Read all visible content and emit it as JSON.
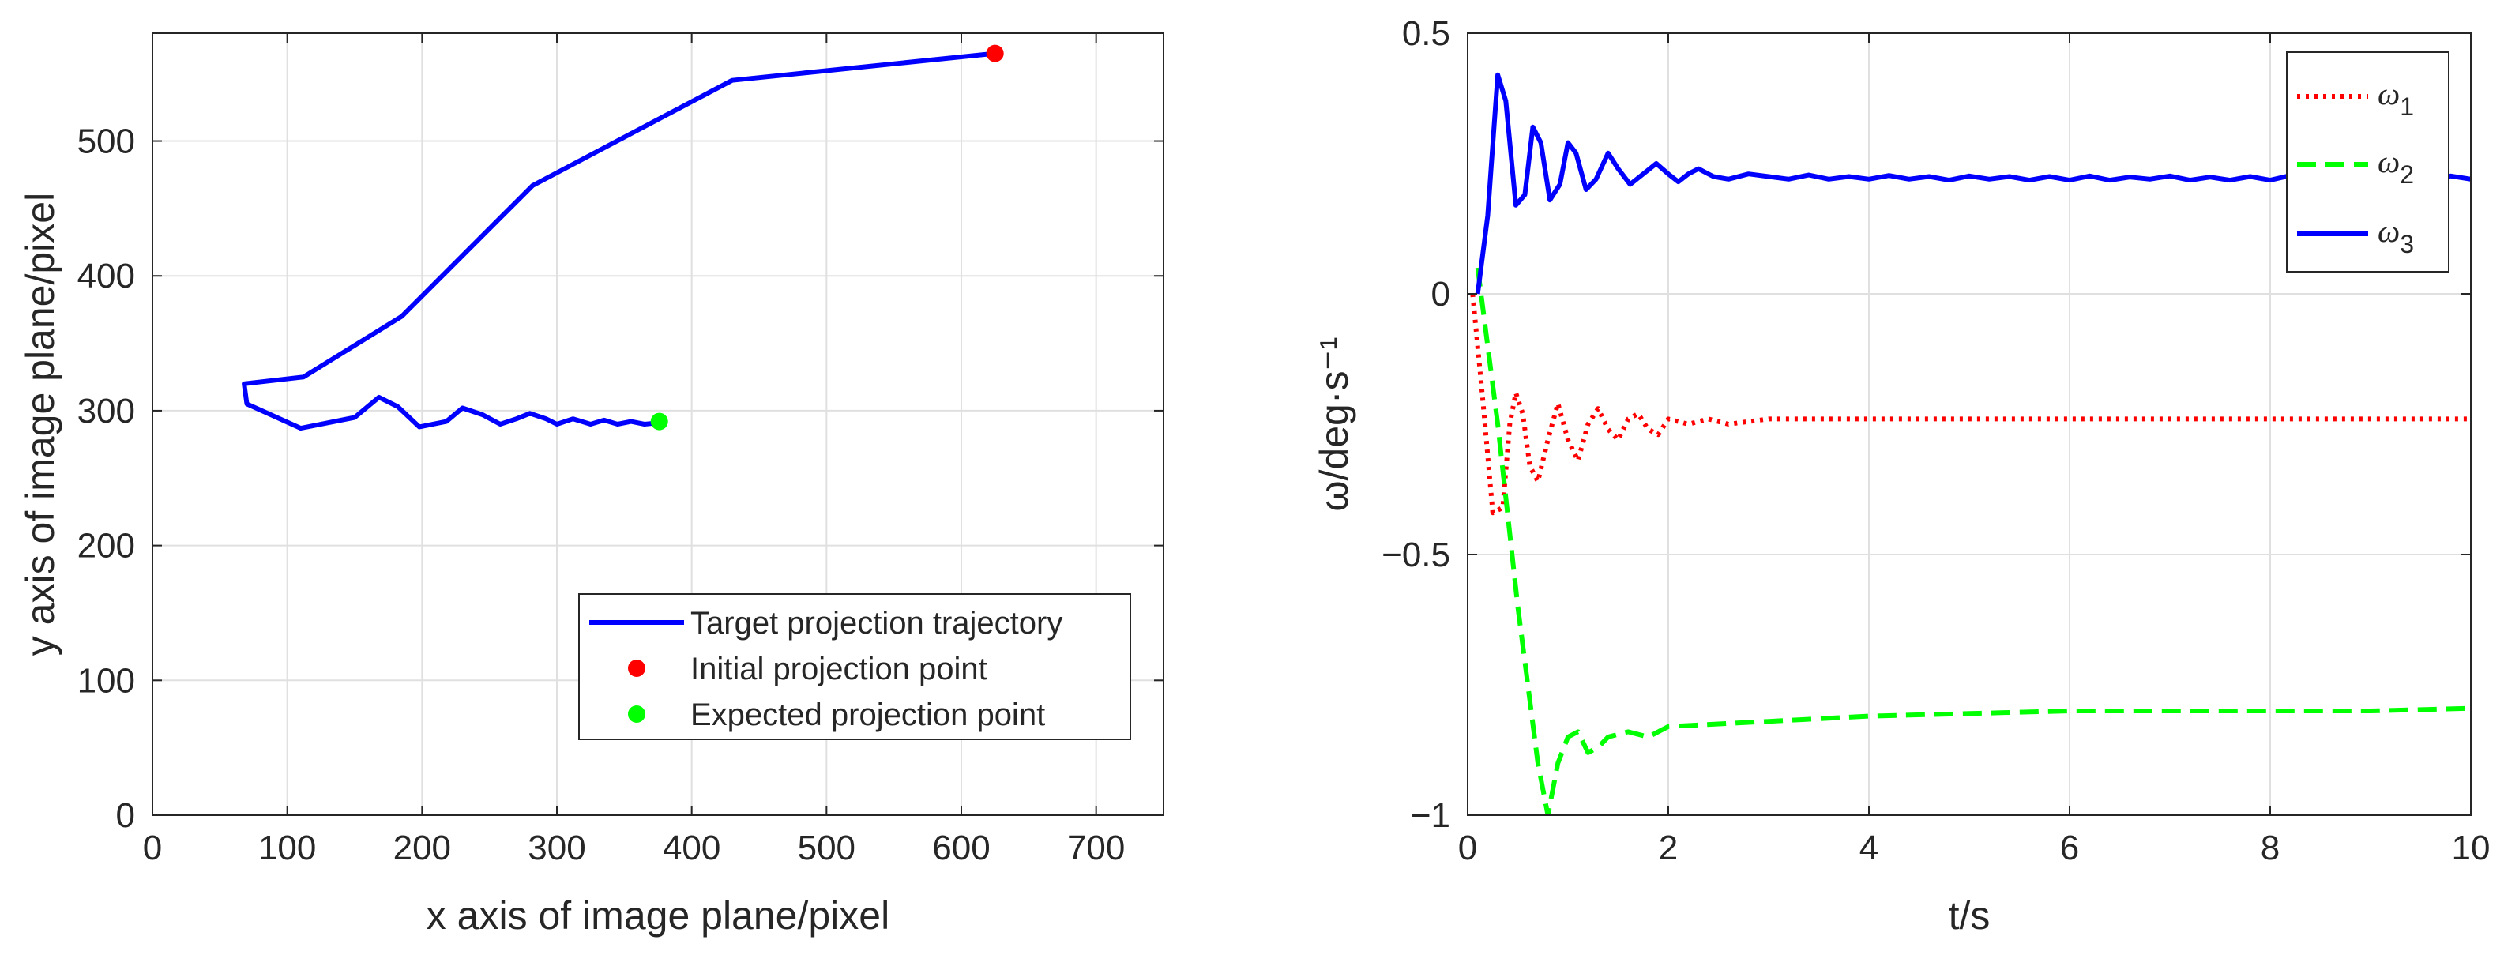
{
  "chart_data": [
    {
      "type": "line",
      "xlabel": "x axis of image plane/pixel",
      "ylabel": "y axis of image plane/pixel",
      "xlim": [
        0,
        750
      ],
      "ylim": [
        0,
        580
      ],
      "xticks": [
        0,
        100,
        200,
        300,
        400,
        500,
        600,
        700
      ],
      "yticks": [
        0,
        100,
        200,
        300,
        400,
        500
      ],
      "grid": true,
      "legend_position": "bottom-right",
      "series": [
        {
          "name": "Target projection trajectory",
          "color": "#0000ff",
          "style": "solid",
          "points": [
            [
              625,
              565
            ],
            [
              430,
              545
            ],
            [
              282,
              467
            ],
            [
              185,
              370
            ],
            [
              112,
              325
            ],
            [
              68,
              320
            ],
            [
              70,
              305
            ],
            [
              110,
              287
            ],
            [
              150,
              295
            ],
            [
              168,
              310
            ],
            [
              182,
              303
            ],
            [
              198,
              288
            ],
            [
              218,
              292
            ],
            [
              230,
              302
            ],
            [
              245,
              297
            ],
            [
              258,
              290
            ],
            [
              270,
              294
            ],
            [
              280,
              298
            ],
            [
              292,
              294
            ],
            [
              300,
              290
            ],
            [
              312,
              294
            ],
            [
              325,
              290
            ],
            [
              335,
              293
            ],
            [
              345,
              290
            ],
            [
              355,
              292
            ],
            [
              365,
              290
            ],
            [
              375,
              291
            ]
          ]
        },
        {
          "name": "Initial projection point",
          "color": "#ff0000",
          "style": "marker",
          "points": [
            [
              625,
              565
            ]
          ]
        },
        {
          "name": "Expected projection point",
          "color": "#00ff00",
          "style": "marker",
          "points": [
            [
              376,
              292
            ]
          ]
        }
      ]
    },
    {
      "type": "line",
      "xlabel": "t/s",
      "ylabel": "ω/deg·s⁻¹",
      "xlim": [
        0,
        10
      ],
      "ylim": [
        -1,
        0.5
      ],
      "xticks": [
        0,
        2,
        4,
        6,
        8,
        10
      ],
      "yticks": [
        -1,
        -0.5,
        0,
        0.5
      ],
      "xtick_labels": [
        "0",
        "2",
        "4",
        "6",
        "8",
        "10"
      ],
      "ytick_labels": [
        "−1",
        "−0.5",
        "0",
        "0.5"
      ],
      "grid": true,
      "legend_position": "top-right",
      "series": [
        {
          "name": "ω",
          "subscript": "1",
          "color": "#ff0000",
          "style": "dotted",
          "points": [
            [
              0.05,
              0
            ],
            [
              0.15,
              -0.2
            ],
            [
              0.25,
              -0.42
            ],
            [
              0.35,
              -0.41
            ],
            [
              0.42,
              -0.25
            ],
            [
              0.48,
              -0.19
            ],
            [
              0.55,
              -0.23
            ],
            [
              0.62,
              -0.33
            ],
            [
              0.7,
              -0.36
            ],
            [
              0.8,
              -0.28
            ],
            [
              0.9,
              -0.21
            ],
            [
              1.0,
              -0.28
            ],
            [
              1.1,
              -0.32
            ],
            [
              1.2,
              -0.25
            ],
            [
              1.3,
              -0.22
            ],
            [
              1.4,
              -0.26
            ],
            [
              1.5,
              -0.28
            ],
            [
              1.6,
              -0.24
            ],
            [
              1.7,
              -0.23
            ],
            [
              1.8,
              -0.26
            ],
            [
              1.9,
              -0.27
            ],
            [
              2.0,
              -0.24
            ],
            [
              2.2,
              -0.25
            ],
            [
              2.4,
              -0.24
            ],
            [
              2.6,
              -0.25
            ],
            [
              3,
              -0.24
            ],
            [
              4,
              -0.24
            ],
            [
              5,
              -0.24
            ],
            [
              6,
              -0.24
            ],
            [
              7,
              -0.24
            ],
            [
              8,
              -0.24
            ],
            [
              9,
              -0.24
            ],
            [
              10,
              -0.24
            ]
          ]
        },
        {
          "name": "ω",
          "subscript": "2",
          "color": "#00ff00",
          "style": "dashed",
          "points": [
            [
              0.1,
              0.05
            ],
            [
              0.3,
              -0.25
            ],
            [
              0.5,
              -0.6
            ],
            [
              0.7,
              -0.9
            ],
            [
              0.8,
              -1.0
            ],
            [
              0.9,
              -0.9
            ],
            [
              1.0,
              -0.85
            ],
            [
              1.1,
              -0.84
            ],
            [
              1.2,
              -0.88
            ],
            [
              1.3,
              -0.87
            ],
            [
              1.4,
              -0.85
            ],
            [
              1.6,
              -0.84
            ],
            [
              1.8,
              -0.85
            ],
            [
              2.0,
              -0.83
            ],
            [
              3,
              -0.82
            ],
            [
              4,
              -0.81
            ],
            [
              5,
              -0.805
            ],
            [
              6,
              -0.8
            ],
            [
              7,
              -0.8
            ],
            [
              8,
              -0.8
            ],
            [
              9,
              -0.8
            ],
            [
              10,
              -0.795
            ]
          ]
        },
        {
          "name": "ω",
          "subscript": "3",
          "color": "#0000ff",
          "style": "solid",
          "points": [
            [
              0.1,
              0
            ],
            [
              0.2,
              0.15
            ],
            [
              0.3,
              0.42
            ],
            [
              0.38,
              0.37
            ],
            [
              0.48,
              0.17
            ],
            [
              0.57,
              0.19
            ],
            [
              0.65,
              0.32
            ],
            [
              0.73,
              0.29
            ],
            [
              0.82,
              0.18
            ],
            [
              0.92,
              0.21
            ],
            [
              1.0,
              0.29
            ],
            [
              1.08,
              0.27
            ],
            [
              1.18,
              0.2
            ],
            [
              1.28,
              0.22
            ],
            [
              1.4,
              0.27
            ],
            [
              1.5,
              0.24
            ],
            [
              1.62,
              0.21
            ],
            [
              1.75,
              0.23
            ],
            [
              1.88,
              0.25
            ],
            [
              2.0,
              0.23
            ],
            [
              2.1,
              0.215
            ],
            [
              2.2,
              0.23
            ],
            [
              2.3,
              0.24
            ],
            [
              2.45,
              0.225
            ],
            [
              2.6,
              0.22
            ],
            [
              2.8,
              0.23
            ],
            [
              3,
              0.225
            ],
            [
              3.2,
              0.22
            ],
            [
              3.4,
              0.228
            ],
            [
              3.6,
              0.22
            ],
            [
              3.8,
              0.225
            ],
            [
              4,
              0.22
            ],
            [
              4.2,
              0.227
            ],
            [
              4.4,
              0.22
            ],
            [
              4.6,
              0.225
            ],
            [
              4.8,
              0.218
            ],
            [
              5,
              0.226
            ],
            [
              5.2,
              0.22
            ],
            [
              5.4,
              0.225
            ],
            [
              5.6,
              0.218
            ],
            [
              5.8,
              0.225
            ],
            [
              6,
              0.218
            ],
            [
              6.2,
              0.226
            ],
            [
              6.4,
              0.218
            ],
            [
              6.6,
              0.224
            ],
            [
              6.8,
              0.22
            ],
            [
              7,
              0.226
            ],
            [
              7.2,
              0.218
            ],
            [
              7.4,
              0.224
            ],
            [
              7.6,
              0.218
            ],
            [
              7.8,
              0.225
            ],
            [
              8,
              0.218
            ],
            [
              8.2,
              0.227
            ],
            [
              8.4,
              0.22
            ],
            [
              8.6,
              0.226
            ],
            [
              8.8,
              0.218
            ],
            [
              9,
              0.226
            ],
            [
              9.2,
              0.22
            ],
            [
              9.4,
              0.225
            ],
            [
              9.6,
              0.22
            ],
            [
              9.8,
              0.226
            ],
            [
              10,
              0.22
            ]
          ]
        }
      ]
    }
  ]
}
